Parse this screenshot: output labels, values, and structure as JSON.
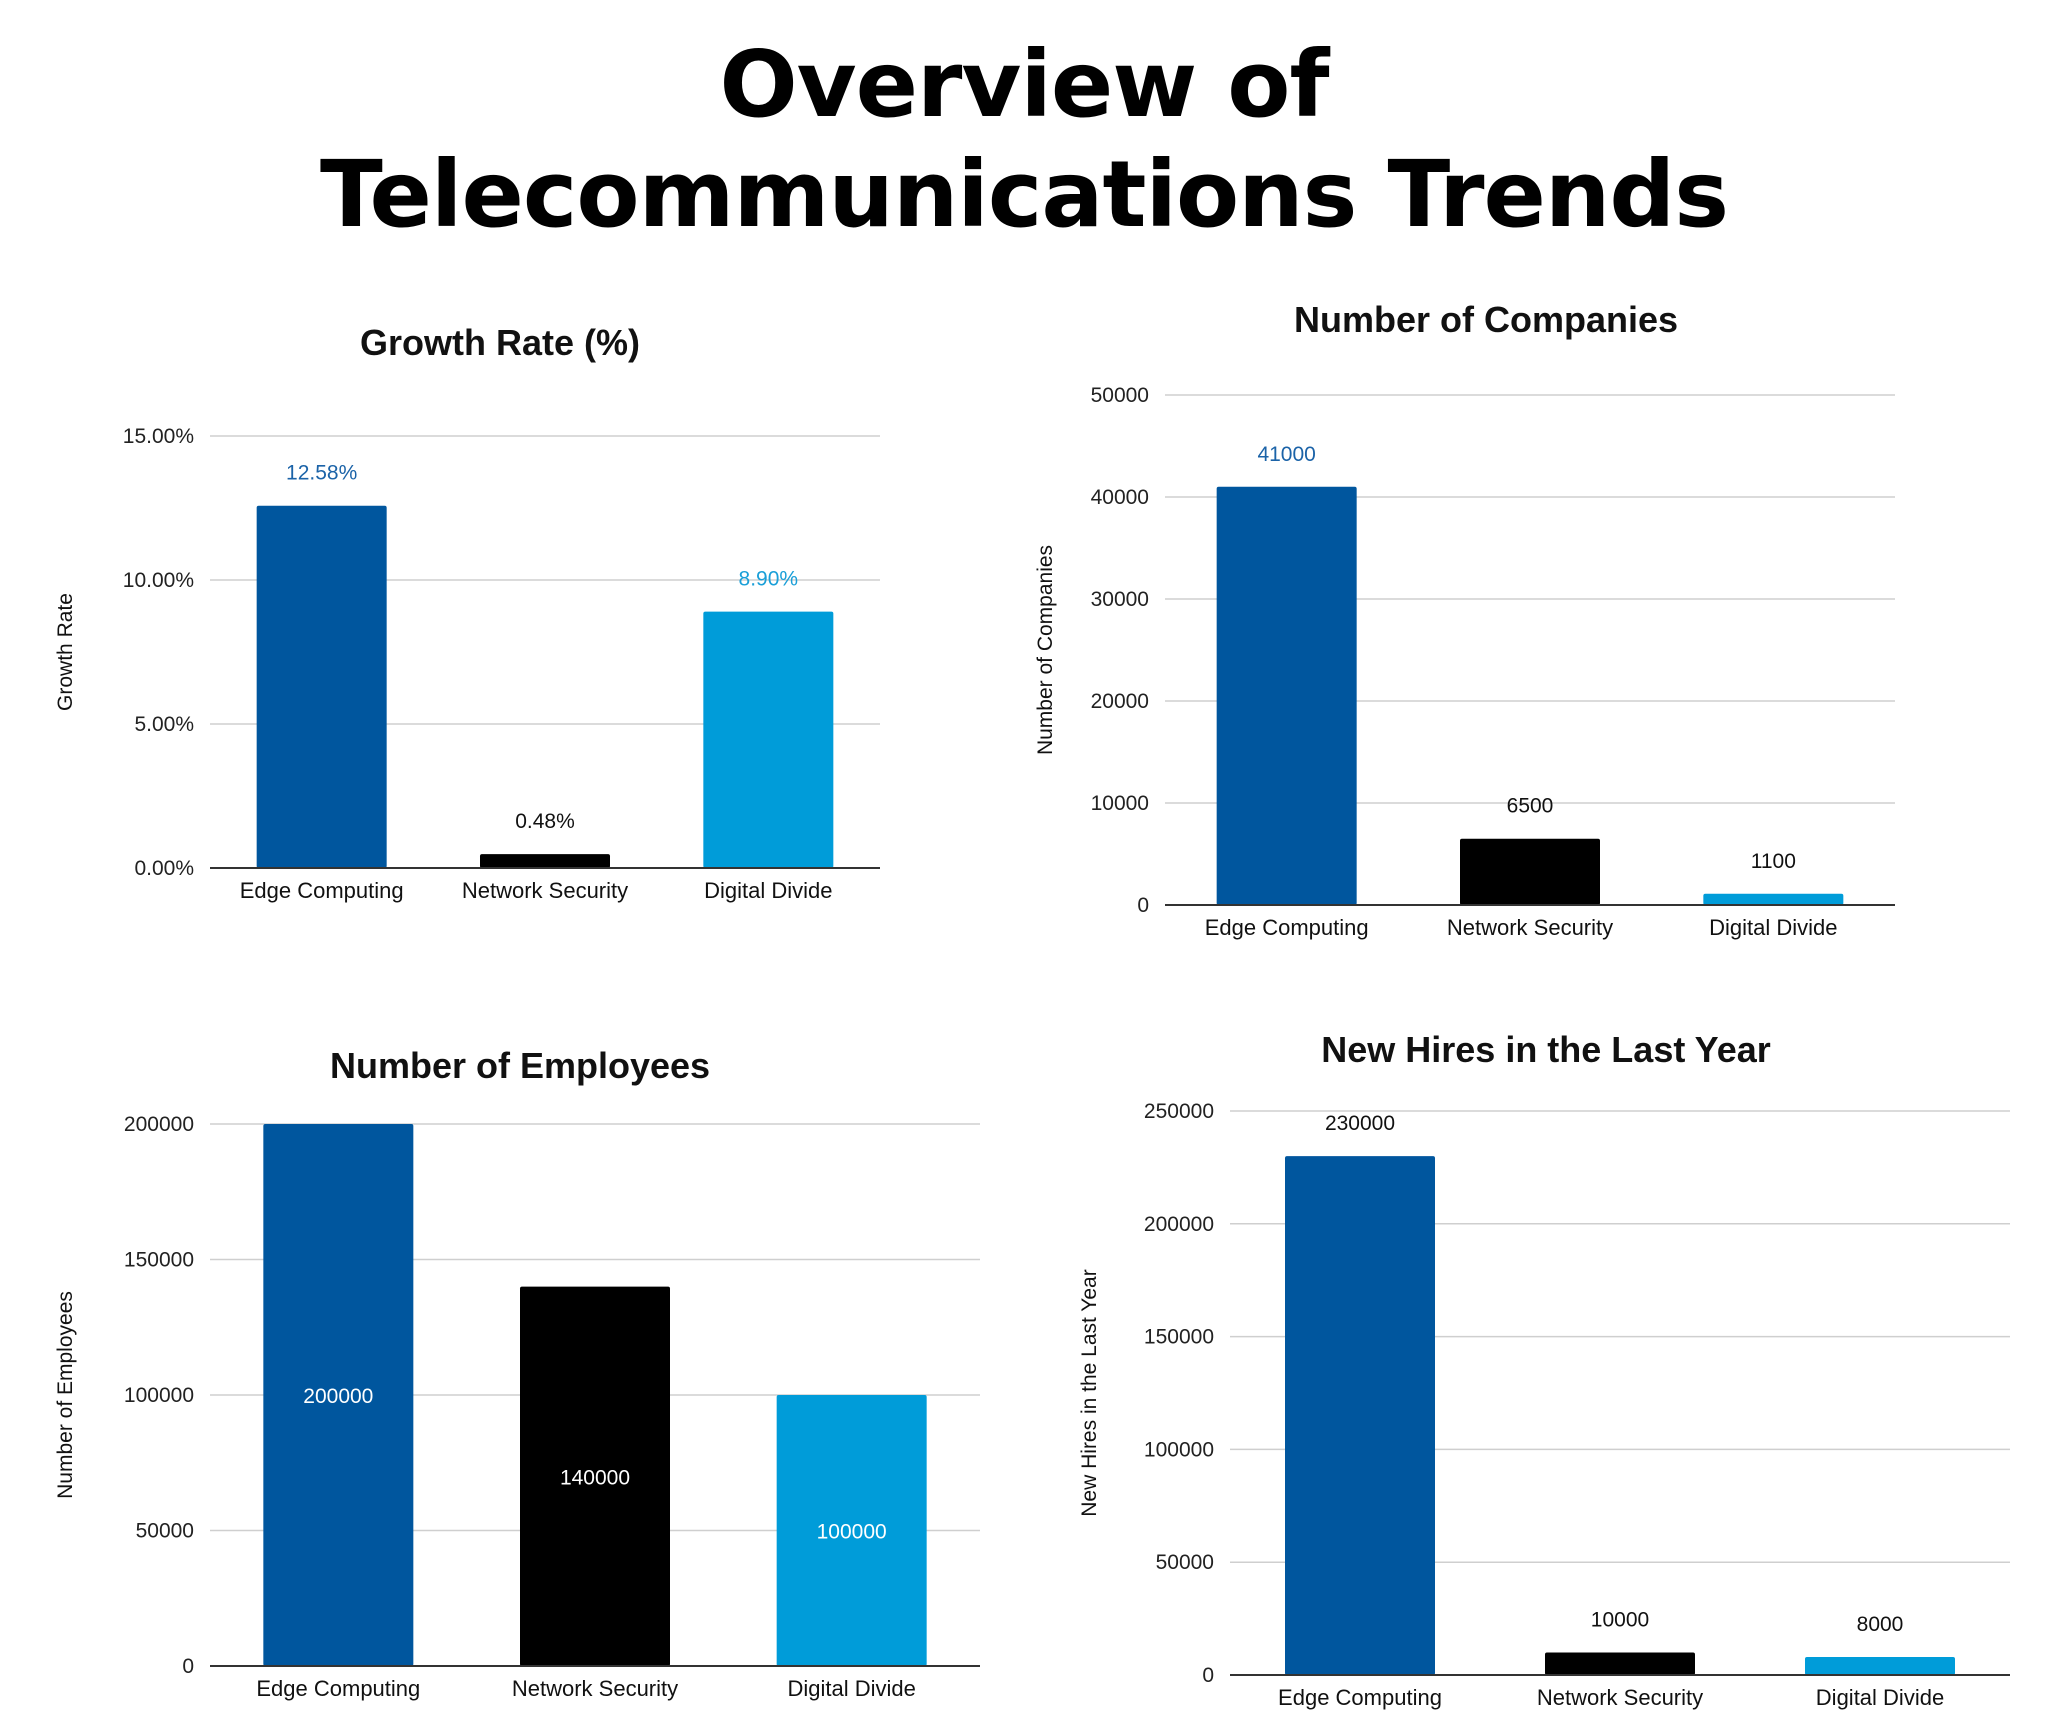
{
  "title": {
    "line1": "Overview of",
    "line2": "Telecommunications Trends"
  },
  "colors": {
    "edge": "#00569e",
    "network": "#000000",
    "divide": "#009cd9"
  },
  "chart_data": [
    {
      "type": "bar",
      "title": "Growth Rate (%)",
      "xlabel": "",
      "ylabel": "Growth Rate",
      "categories": [
        "Edge Computing",
        "Network Security",
        "Digital Divide"
      ],
      "values": [
        12.58,
        0.48,
        8.9
      ],
      "value_labels": [
        "12.58%",
        "0.48%",
        "8.90%"
      ],
      "label_position": "above",
      "ylim": [
        0,
        15
      ],
      "yticks": [
        0,
        5,
        10,
        15
      ],
      "ytick_labels": [
        "0.00%",
        "5.00%",
        "10.00%",
        "15.00%"
      ],
      "grid": true,
      "legend": "none"
    },
    {
      "type": "bar",
      "title": "Number of Companies",
      "xlabel": "",
      "ylabel": "Number of Companies",
      "categories": [
        "Edge Computing",
        "Network Security",
        "Digital Divide"
      ],
      "values": [
        41000,
        6500,
        1100
      ],
      "value_labels": [
        "41000",
        "6500",
        "1100"
      ],
      "label_position": "above",
      "ylim": [
        0,
        50000
      ],
      "yticks": [
        0,
        10000,
        20000,
        30000,
        40000,
        50000
      ],
      "ytick_labels": [
        "0",
        "10000",
        "20000",
        "30000",
        "40000",
        "50000"
      ],
      "grid": true,
      "legend": "none"
    },
    {
      "type": "bar",
      "title": "Number of Employees",
      "xlabel": "",
      "ylabel": "Number of Employees",
      "categories": [
        "Edge Computing",
        "Network Security",
        "Digital Divide"
      ],
      "values": [
        200000,
        140000,
        100000
      ],
      "value_labels": [
        "200000",
        "140000",
        "100000"
      ],
      "label_position": "inside",
      "ylim": [
        0,
        200000
      ],
      "yticks": [
        0,
        50000,
        100000,
        150000,
        200000
      ],
      "ytick_labels": [
        "0",
        "50000",
        "100000",
        "150000",
        "200000"
      ],
      "grid": true,
      "legend": "none"
    },
    {
      "type": "bar",
      "title": "New Hires in the Last Year",
      "xlabel": "",
      "ylabel": "New Hires in the Last Year",
      "categories": [
        "Edge Computing",
        "Network Security",
        "Digital Divide"
      ],
      "values": [
        230000,
        10000,
        8000
      ],
      "value_labels": [
        "230000",
        "10000",
        "8000"
      ],
      "label_position": "above",
      "ylim": [
        0,
        250000
      ],
      "yticks": [
        0,
        50000,
        100000,
        150000,
        200000,
        250000
      ],
      "ytick_labels": [
        "0",
        "50000",
        "100000",
        "150000",
        "200000",
        "250000"
      ],
      "grid": true,
      "legend": "none"
    }
  ]
}
